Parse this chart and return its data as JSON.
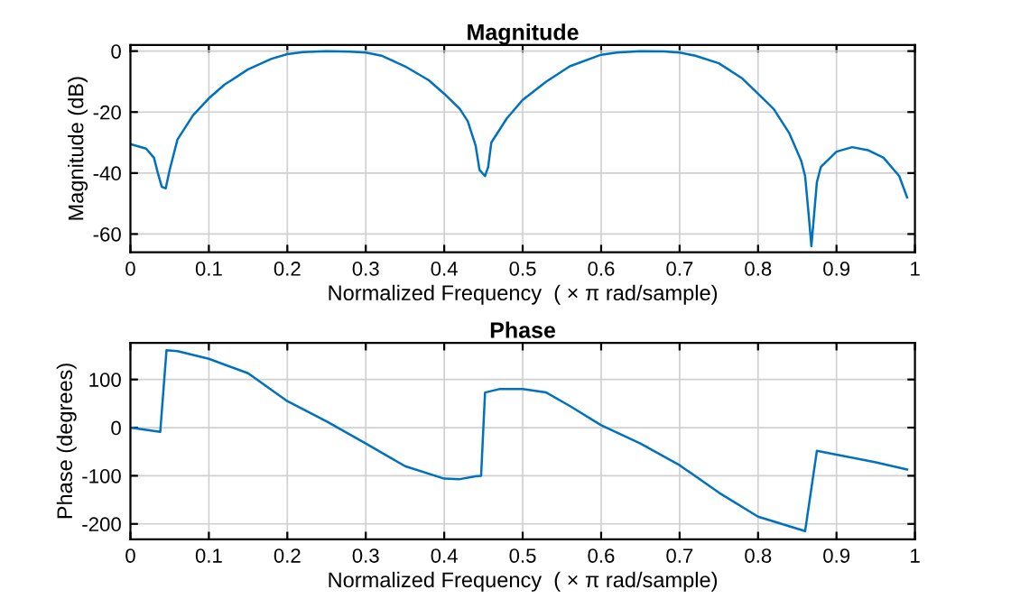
{
  "chart_data": [
    {
      "type": "line",
      "title": "Magnitude",
      "xlabel": "Normalized Frequency  ( × π rad/sample)",
      "ylabel": "Magnitude (dB)",
      "grid": true,
      "x": [
        0,
        0.02,
        0.03,
        0.035,
        0.04,
        0.045,
        0.05,
        0.06,
        0.08,
        0.1,
        0.12,
        0.15,
        0.18,
        0.2,
        0.22,
        0.25,
        0.28,
        0.3,
        0.32,
        0.35,
        0.38,
        0.4,
        0.42,
        0.43,
        0.44,
        0.445,
        0.452,
        0.456,
        0.46,
        0.48,
        0.5,
        0.53,
        0.56,
        0.6,
        0.62,
        0.65,
        0.68,
        0.7,
        0.72,
        0.75,
        0.78,
        0.8,
        0.82,
        0.84,
        0.855,
        0.86,
        0.865,
        0.868,
        0.872,
        0.875,
        0.88,
        0.9,
        0.92,
        0.94,
        0.96,
        0.98,
        0.99
      ],
      "series": [
        {
          "color": "#0072bd",
          "values": [
            -30.5,
            -32,
            -35,
            -40,
            -44.5,
            -45,
            -39,
            -29,
            -21,
            -15.5,
            -11,
            -6,
            -2.5,
            -1,
            -0.3,
            0,
            -0.2,
            -0.5,
            -1.5,
            -5,
            -9.5,
            -14,
            -19,
            -23,
            -31,
            -39,
            -41,
            -38,
            -30,
            -22,
            -16,
            -10,
            -5,
            -1.2,
            -0.5,
            0,
            -0.1,
            -0.5,
            -1.5,
            -4,
            -9,
            -14,
            -19,
            -27,
            -36,
            -41,
            -55,
            -64,
            -52,
            -43,
            -38,
            -33,
            -31.5,
            -32.5,
            -35,
            -41,
            -48
          ]
        }
      ],
      "xlim": [
        0,
        1
      ],
      "xticks": [
        0,
        0.1,
        0.2,
        0.3,
        0.4,
        0.5,
        0.6,
        0.7,
        0.8,
        0.9,
        1
      ],
      "ylim": [
        -66,
        2
      ],
      "yticks": [
        -60,
        -40,
        -20,
        0
      ]
    },
    {
      "type": "line",
      "title": "Phase",
      "xlabel": "Normalized Frequency  ( × π rad/sample)",
      "ylabel": "Phase (degrees)",
      "grid": true,
      "x": [
        0,
        0.038,
        0.046,
        0.06,
        0.1,
        0.15,
        0.2,
        0.25,
        0.3,
        0.35,
        0.4,
        0.42,
        0.44,
        0.447,
        0.452,
        0.47,
        0.5,
        0.53,
        0.56,
        0.6,
        0.65,
        0.7,
        0.75,
        0.8,
        0.86,
        0.875,
        0.9,
        0.95,
        0.99
      ],
      "series": [
        {
          "color": "#0072bd",
          "values": [
            0,
            -9,
            161,
            159,
            143,
            113,
            55,
            13,
            -33,
            -80,
            -106,
            -107,
            -101,
            -100,
            73,
            80,
            80,
            73,
            45,
            5,
            -33,
            -78,
            -135,
            -185,
            -215,
            -48,
            -56,
            -72,
            -87
          ]
        }
      ],
      "xlim": [
        0,
        1
      ],
      "xticks": [
        0,
        0.1,
        0.2,
        0.3,
        0.4,
        0.5,
        0.6,
        0.7,
        0.8,
        0.9,
        1
      ],
      "ylim": [
        -232,
        176
      ],
      "yticks": [
        -200,
        -100,
        0,
        100
      ]
    }
  ]
}
